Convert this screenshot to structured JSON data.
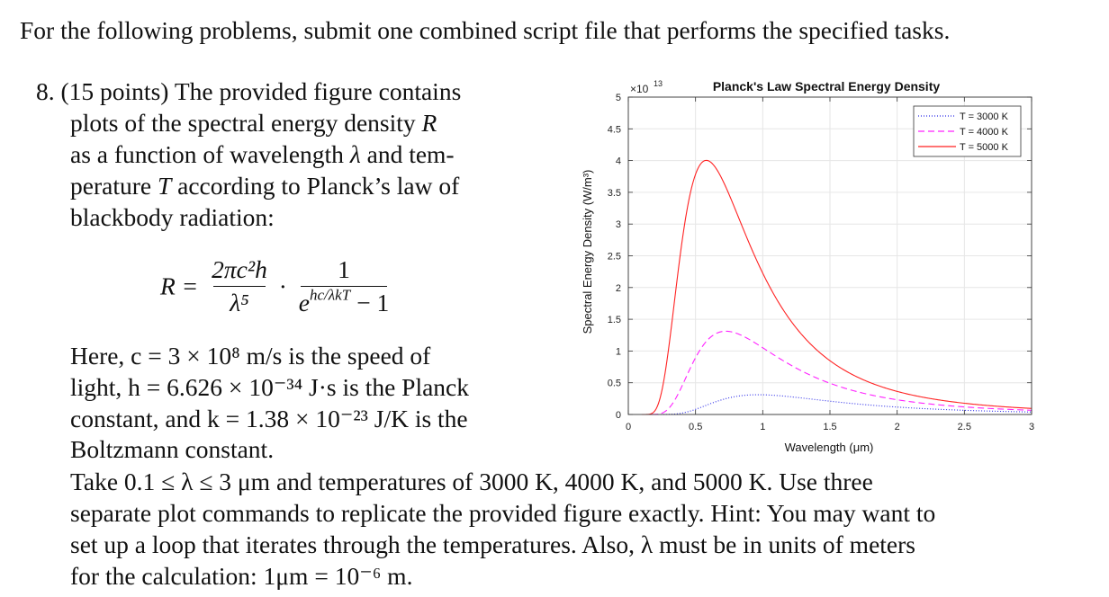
{
  "intro": "For the following problems, submit one combined script file that performs the specified tasks.",
  "problem": {
    "number": "8.",
    "points": "(15 points)",
    "p1_lines": [
      "The provided figure contains",
      "plots of the spectral energy density",
      "as a function of wavelength",
      "and tem-",
      "perature",
      "according to Planck’s law of",
      "blackbody radiation:"
    ],
    "var_R": "R",
    "var_lambda": "λ",
    "var_T": "T",
    "equation": {
      "lhs": "R =",
      "num1": "2πc²h",
      "den1": "λ⁵",
      "dot": "·",
      "num2": "1",
      "den2_exp": "hc/λkT",
      "den2_base": "e",
      "den2_tail": "− 1"
    },
    "constants_lines": [
      "Here, c = 3 × 10⁸ m/s is the speed of",
      "light, h = 6.626 × 10⁻³⁴ J·s is the Planck",
      "constant, and k = 1.38 × 10⁻²³ J/K is the",
      "Boltzmann constant."
    ],
    "instructions_lines": [
      "Take 0.1 ≤ λ ≤ 3 μm and temperatures of 3000 K, 4000 K, and 5000 K. Use three",
      "separate plot commands to replicate the provided figure exactly. Hint: You may want to",
      "set up a loop that iterates through the temperatures. Also, λ must be in units of meters",
      "for the calculation: 1μm = 10⁻⁶ m."
    ]
  },
  "colors": {
    "t3000": "#2a2ae8",
    "t4000": "#ff22ff",
    "t5000": "#ff2222",
    "grid": "#e6e6e6",
    "axis": "#333333"
  },
  "chart_data": {
    "type": "line",
    "title": "Planck's Law Spectral Energy Density",
    "xlabel": "Wavelength (μm)",
    "ylabel": "Spectral Energy Density (W/m³)",
    "y_exponent_label": "×10",
    "y_exponent": "13",
    "xlim": [
      0,
      3
    ],
    "ylim": [
      0,
      5
    ],
    "x_ticks": [
      0,
      0.5,
      1,
      1.5,
      2,
      2.5,
      3
    ],
    "x_tick_labels": [
      "0",
      "0.5",
      "1",
      "1.5",
      "2",
      "2.5",
      "3"
    ],
    "y_ticks": [
      0,
      0.5,
      1,
      1.5,
      2,
      2.5,
      3,
      3.5,
      4,
      4.5,
      5
    ],
    "y_tick_labels": [
      "0",
      "0.5",
      "1",
      "1.5",
      "2",
      "2.5",
      "3",
      "3.5",
      "4",
      "4.5",
      "5"
    ],
    "grid": true,
    "legend_position": "top-right",
    "lambda_range_um": [
      0.1,
      3
    ],
    "series": [
      {
        "name": "T = 3000 K",
        "temperature": 3000,
        "style": "dotted",
        "color": "#2a2ae8"
      },
      {
        "name": "T = 4000 K",
        "temperature": 4000,
        "style": "dashed",
        "color": "#ff22ff"
      },
      {
        "name": "T = 5000 K",
        "temperature": 5000,
        "style": "solid",
        "color": "#ff2222"
      }
    ],
    "constants": {
      "c": 300000000.0,
      "h": 6.626e-34,
      "k": 1.38e-23,
      "y_scale": 10000000000000.0
    }
  }
}
